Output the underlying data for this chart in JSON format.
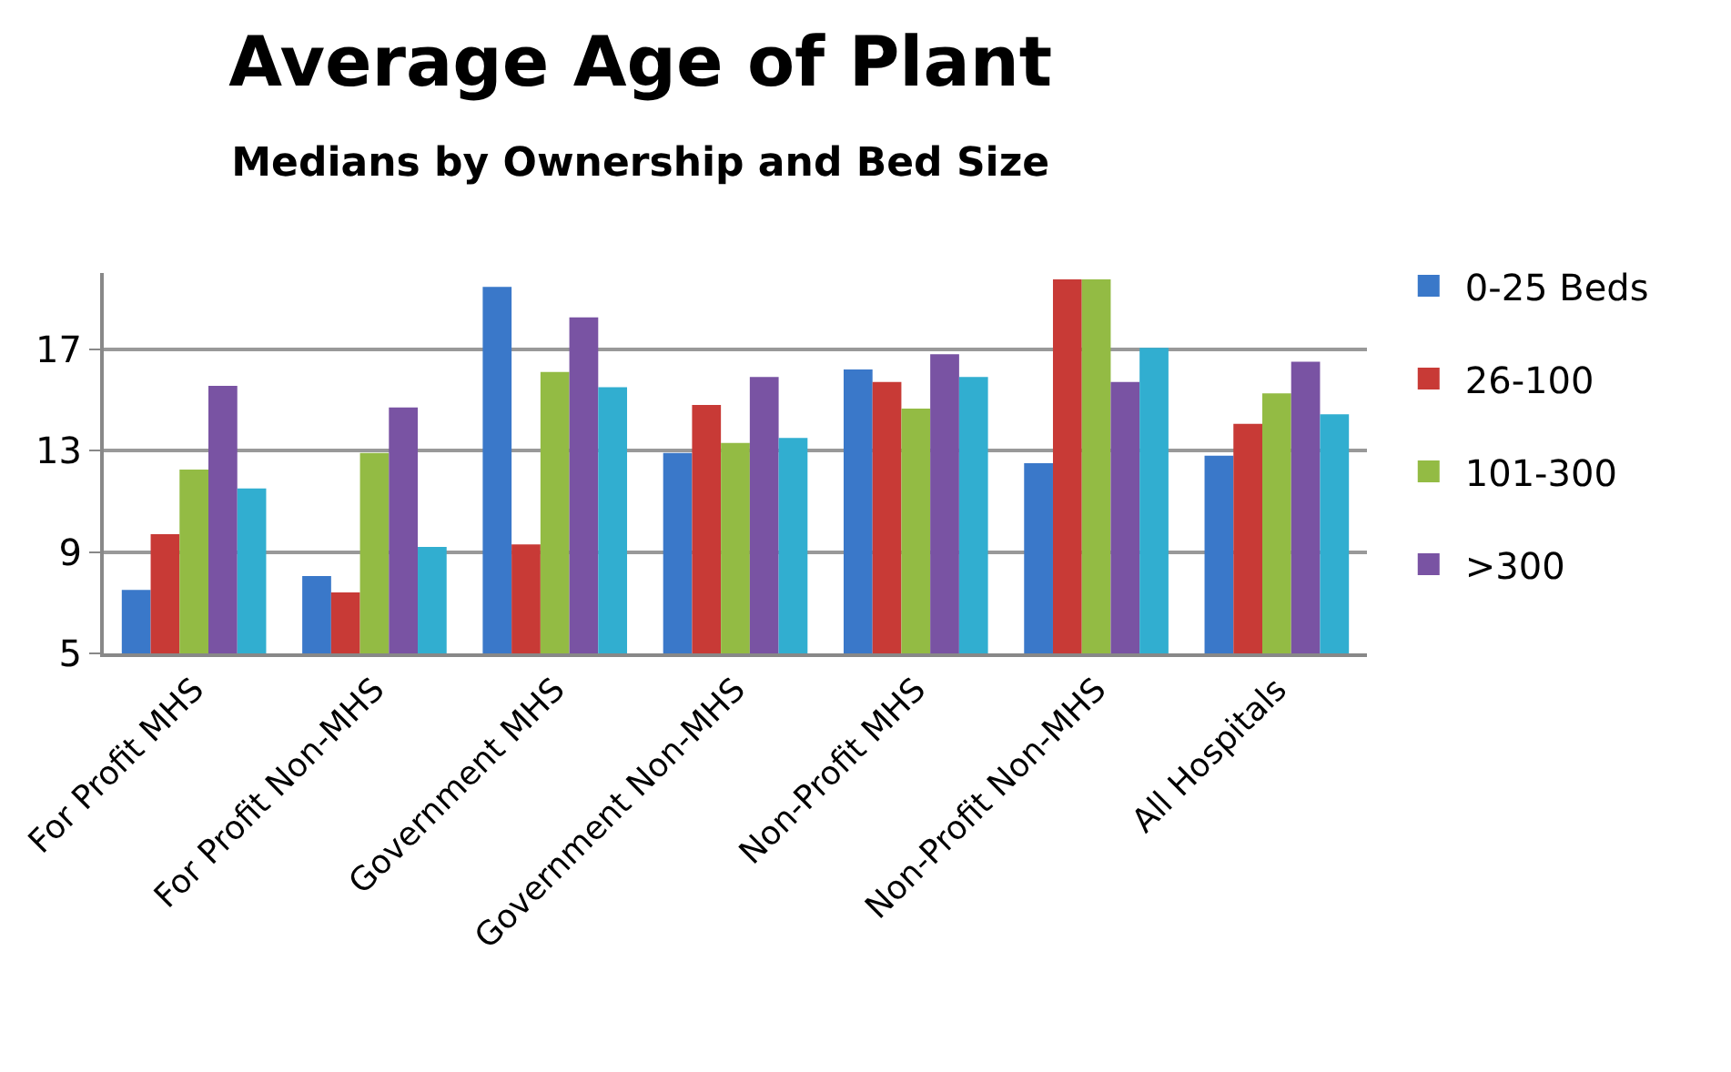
{
  "chart_data": {
    "type": "bar",
    "title": "Average Age of Plant",
    "subtitle": "Medians by Ownership and Bed Size",
    "categories": [
      "For Profit MHS",
      "For Profit Non-MHS",
      "Government MHS",
      "Government Non-MHS",
      "Non-Profit MHS",
      "Non-Profit Non-MHS",
      "All Hospitals"
    ],
    "series": [
      {
        "name": "0-25 Beds",
        "color": "#3a78c9",
        "values": [
          7.5,
          8.05,
          19.45,
          12.9,
          16.2,
          12.5,
          12.8
        ]
      },
      {
        "name": "26-100",
        "color": "#c83a36",
        "values": [
          9.7,
          7.4,
          9.3,
          14.8,
          15.7,
          19.75,
          14.05
        ]
      },
      {
        "name": "101-300",
        "color": "#93bb44",
        "values": [
          12.25,
          12.9,
          16.1,
          13.3,
          14.65,
          19.75,
          15.25
        ]
      },
      {
        "name": ">300",
        "color": "#7953a3",
        "values": [
          15.55,
          14.7,
          18.25,
          15.9,
          16.8,
          15.7,
          16.5
        ]
      },
      {
        "color": "#31aed0",
        "values": [
          11.5,
          9.2,
          15.5,
          13.5,
          15.9,
          17.05,
          14.43
        ]
      }
    ],
    "ylim": [
      5,
      20
    ],
    "yticks": [
      5,
      9,
      13,
      17
    ],
    "grid": "y",
    "legend": "right"
  }
}
